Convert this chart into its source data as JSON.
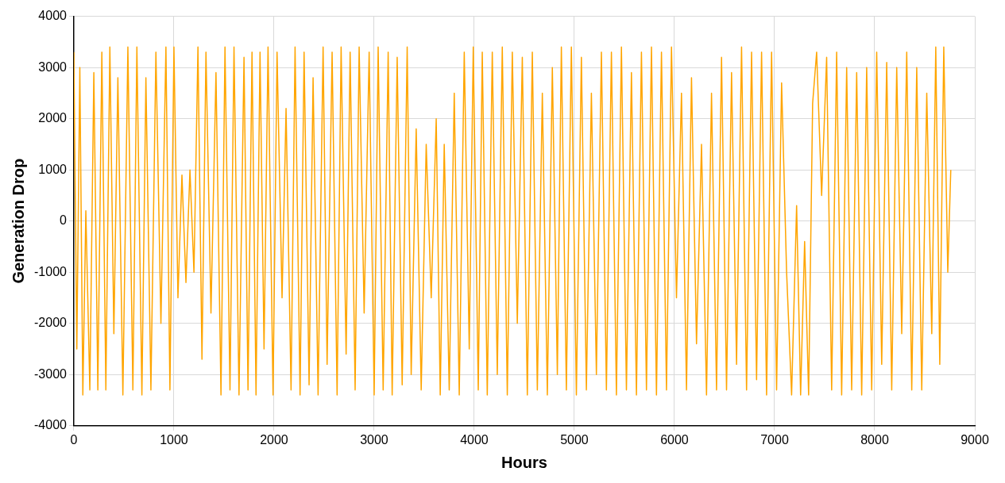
{
  "chart_data": {
    "type": "line",
    "xlabel": "Hours",
    "ylabel": "Generation Drop",
    "xlim": [
      0,
      9000
    ],
    "ylim": [
      -4000,
      4000
    ],
    "xticks": [
      0,
      1000,
      2000,
      3000,
      4000,
      5000,
      6000,
      7000,
      8000,
      9000
    ],
    "yticks": [
      -4000,
      -3000,
      -2000,
      -1000,
      0,
      1000,
      2000,
      3000,
      4000
    ],
    "grid": true,
    "legend": false,
    "marker": "none",
    "line_style": "solid",
    "series": [
      {
        "color": "#ffa500",
        "x": [
          0,
          30,
          60,
          90,
          120,
          160,
          200,
          240,
          280,
          320,
          360,
          400,
          440,
          490,
          540,
          590,
          630,
          680,
          720,
          770,
          820,
          870,
          920,
          960,
          1000,
          1040,
          1080,
          1120,
          1160,
          1200,
          1240,
          1280,
          1320,
          1370,
          1420,
          1470,
          1510,
          1560,
          1600,
          1650,
          1700,
          1740,
          1780,
          1820,
          1860,
          1900,
          1940,
          1990,
          2030,
          2080,
          2120,
          2170,
          2210,
          2260,
          2300,
          2350,
          2390,
          2440,
          2490,
          2530,
          2580,
          2630,
          2670,
          2720,
          2760,
          2810,
          2850,
          2900,
          2950,
          3000,
          3040,
          3090,
          3140,
          3180,
          3230,
          3280,
          3330,
          3370,
          3420,
          3470,
          3520,
          3570,
          3620,
          3660,
          3700,
          3750,
          3800,
          3850,
          3900,
          3950,
          3990,
          4040,
          4080,
          4130,
          4180,
          4230,
          4280,
          4330,
          4380,
          4430,
          4480,
          4530,
          4580,
          4630,
          4680,
          4730,
          4780,
          4830,
          4870,
          4920,
          4970,
          5020,
          5070,
          5120,
          5170,
          5220,
          5270,
          5320,
          5370,
          5420,
          5470,
          5520,
          5570,
          5620,
          5670,
          5720,
          5770,
          5820,
          5870,
          5920,
          5970,
          6020,
          6070,
          6120,
          6170,
          6220,
          6270,
          6320,
          6370,
          6420,
          6470,
          6520,
          6570,
          6620,
          6670,
          6720,
          6770,
          6820,
          6870,
          6920,
          6970,
          7020,
          7070,
          7120,
          7170,
          7220,
          7260,
          7300,
          7340,
          7380,
          7420,
          7470,
          7520,
          7570,
          7620,
          7670,
          7720,
          7770,
          7820,
          7870,
          7920,
          7970,
          8020,
          8070,
          8120,
          8170,
          8220,
          8270,
          8320,
          8370,
          8420,
          8470,
          8520,
          8570,
          8610,
          8650,
          8690,
          8730,
          8760
        ],
        "values": [
          3300,
          -2500,
          3000,
          -3400,
          200,
          -3300,
          2900,
          -3300,
          3300,
          -3300,
          3400,
          -2200,
          2800,
          -3400,
          3400,
          -3300,
          3400,
          -3400,
          2800,
          -3300,
          3300,
          -2000,
          3400,
          -3300,
          3400,
          -1500,
          900,
          -1200,
          1000,
          -1000,
          3400,
          -2700,
          3300,
          -1800,
          2900,
          -3400,
          3400,
          -3300,
          3400,
          -3400,
          3200,
          -3300,
          3300,
          -3400,
          3300,
          -2500,
          3400,
          -3400,
          3300,
          -1500,
          2200,
          -3300,
          3400,
          -3400,
          3300,
          -3200,
          2800,
          -3400,
          3400,
          -2800,
          3300,
          -3400,
          3400,
          -2600,
          3300,
          -3300,
          3400,
          -1800,
          3300,
          -3400,
          3400,
          -3300,
          3300,
          -3400,
          3200,
          -3200,
          3400,
          -3000,
          1800,
          -3300,
          1500,
          -1500,
          2000,
          -3400,
          1500,
          -3300,
          2500,
          -3400,
          3300,
          -2500,
          3400,
          -3300,
          3300,
          -3400,
          3300,
          -3000,
          3400,
          -3400,
          3300,
          -2000,
          3200,
          -3400,
          3300,
          -3300,
          2500,
          -3400,
          3000,
          -3000,
          3400,
          -3300,
          3400,
          -3400,
          3200,
          -3300,
          2500,
          -3000,
          3300,
          -3300,
          3300,
          -3400,
          3400,
          -3300,
          2900,
          -3400,
          3300,
          -3300,
          3400,
          -3400,
          3300,
          -3300,
          3400,
          -1500,
          2500,
          -3300,
          2800,
          -2400,
          1500,
          -3400,
          2500,
          -3300,
          3200,
          -3300,
          2900,
          -2800,
          3400,
          -3300,
          3300,
          -3100,
          3300,
          -3400,
          3300,
          -3300,
          2700,
          -1000,
          -3400,
          300,
          -3400,
          -400,
          -3400,
          2300,
          3300,
          500,
          3200,
          -3300,
          3300,
          -3400,
          3000,
          -3300,
          2900,
          -3400,
          3000,
          -3300,
          3300,
          -2800,
          3100,
          -3300,
          3000,
          -2200,
          3300,
          -3300,
          3000,
          -3300,
          2500,
          -2200,
          3400,
          -2800,
          3400,
          -1000,
          1000
        ]
      }
    ]
  }
}
